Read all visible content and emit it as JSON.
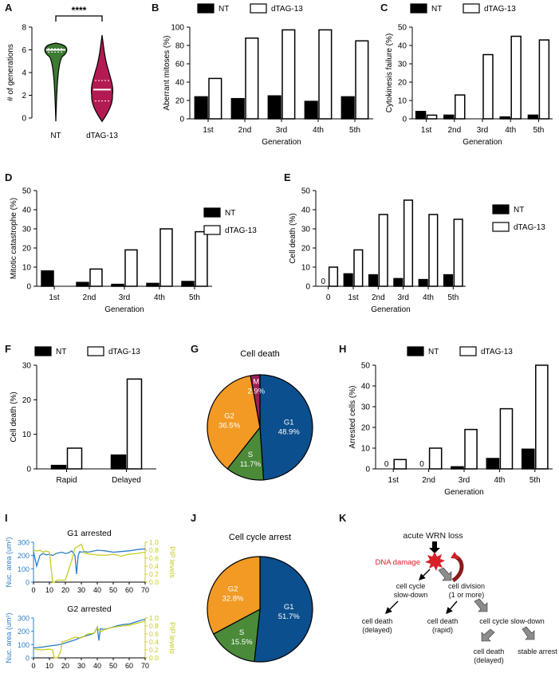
{
  "panel_labels": [
    "A",
    "B",
    "C",
    "D",
    "E",
    "F",
    "G",
    "H",
    "I",
    "J",
    "K"
  ],
  "colors": {
    "nt": "#000000",
    "dtag": "#ffffff",
    "violin_nt": "#3d7a33",
    "violin_dtag": "#b31a53",
    "g1": "#0b4f8e",
    "s": "#4a8a39",
    "g2": "#f29a24",
    "m": "#9c1f55",
    "trace_area": "#2c7dc4",
    "trace_pip": "#c6cc21",
    "damage": "#d8202a",
    "arrow_gray": "#8c8c8c"
  },
  "chart_data": [
    {
      "id": "A",
      "type": "violin",
      "ylabel": "# of generations",
      "ylim": [
        0,
        8
      ],
      "yticks": [
        0,
        2,
        4,
        6,
        8
      ],
      "categories": [
        "NT",
        "dTAG-13"
      ],
      "medians": [
        6,
        2.5
      ],
      "quartiles": [
        [
          5.8,
          6.1
        ],
        [
          1.5,
          3.3
        ]
      ],
      "ranges": [
        [
          -0.3,
          6.6
        ],
        [
          -0.3,
          7.3
        ]
      ],
      "significance": "****"
    },
    {
      "id": "B",
      "type": "bar",
      "ylabel": "Aberrant mitoses (%)",
      "xlabel": "Generation",
      "ylim": [
        0,
        100
      ],
      "yticks": [
        0,
        20,
        40,
        60,
        80,
        100
      ],
      "categories": [
        "1st",
        "2nd",
        "3rd",
        "4th",
        "5th"
      ],
      "series": [
        {
          "name": "NT",
          "values": [
            24,
            22,
            25,
            19,
            24
          ]
        },
        {
          "name": "dTAG-13",
          "values": [
            44,
            88,
            97,
            97,
            85
          ]
        }
      ]
    },
    {
      "id": "C",
      "type": "bar",
      "ylabel": "Cytokinesis failure (%)",
      "xlabel": "Generation",
      "ylim": [
        0,
        50
      ],
      "yticks": [
        0,
        10,
        20,
        30,
        40,
        50
      ],
      "categories": [
        "1st",
        "2nd",
        "3rd",
        "4th",
        "5th"
      ],
      "series": [
        {
          "name": "NT",
          "values": [
            4,
            2,
            0,
            1,
            2
          ]
        },
        {
          "name": "dTAG-13",
          "values": [
            2,
            13,
            35,
            45,
            43
          ]
        }
      ]
    },
    {
      "id": "D",
      "type": "bar",
      "ylabel": "Mitotic catastrophe (%)",
      "xlabel": "Generation",
      "ylim": [
        0,
        50
      ],
      "yticks": [
        0,
        10,
        20,
        30,
        40,
        50
      ],
      "categories": [
        "1st",
        "2nd",
        "3rd",
        "4th",
        "5th"
      ],
      "series": [
        {
          "name": "NT",
          "values": [
            8,
            2,
            1,
            1.5,
            2.5
          ]
        },
        {
          "name": "dTAG-13",
          "values": [
            0,
            9,
            19,
            30,
            28.5
          ]
        }
      ]
    },
    {
      "id": "E",
      "type": "bar",
      "ylabel": "Cell death (%)",
      "xlabel": "Generation",
      "ylim": [
        0,
        50
      ],
      "yticks": [
        0,
        10,
        20,
        30,
        40,
        50
      ],
      "categories": [
        "0",
        "1st",
        "2nd",
        "3rd",
        "4th",
        "5th"
      ],
      "series": [
        {
          "name": "NT",
          "values": [
            0,
            6.5,
            6,
            4,
            3.5,
            6
          ]
        },
        {
          "name": "dTAG-13",
          "values": [
            10,
            19,
            37.5,
            45,
            37.5,
            35
          ]
        }
      ],
      "zero_labels": [
        {
          "category": "0",
          "series": "NT",
          "text": "0"
        }
      ]
    },
    {
      "id": "F",
      "type": "bar",
      "ylabel": "Cell death (%)",
      "xlabel": "",
      "ylim": [
        0,
        30
      ],
      "yticks": [
        0,
        10,
        20,
        30
      ],
      "categories": [
        "Rapid",
        "Delayed"
      ],
      "series": [
        {
          "name": "NT",
          "values": [
            1,
            4
          ]
        },
        {
          "name": "dTAG-13",
          "values": [
            6,
            26
          ]
        }
      ]
    },
    {
      "id": "G",
      "type": "pie",
      "title": "Cell death",
      "slices": [
        {
          "label": "G1",
          "value": 48.9,
          "pct": "48.9%"
        },
        {
          "label": "S",
          "value": 11.7,
          "pct": "11.7%"
        },
        {
          "label": "G2",
          "value": 36.5,
          "pct": "36.5%"
        },
        {
          "label": "M",
          "value": 2.9,
          "pct": "2.9%"
        }
      ]
    },
    {
      "id": "H",
      "type": "bar",
      "ylabel": "Arrested cells (%)",
      "xlabel": "Generation",
      "ylim": [
        0,
        50
      ],
      "yticks": [
        0,
        10,
        20,
        30,
        40,
        50
      ],
      "categories": [
        "1st",
        "2nd",
        "3rd",
        "4th",
        "5th"
      ],
      "series": [
        {
          "name": "NT",
          "values": [
            0,
            0,
            1,
            5,
            9.5
          ]
        },
        {
          "name": "dTAG-13",
          "values": [
            4.5,
            10,
            19,
            29,
            50
          ]
        }
      ],
      "zero_labels": [
        {
          "category": "1st",
          "series": "NT",
          "text": "0"
        },
        {
          "category": "2nd",
          "series": "NT",
          "text": "0"
        }
      ]
    },
    {
      "id": "I1",
      "type": "line",
      "title": "G1 arrested",
      "ylabel": "Nuc. area (um²)",
      "y2label": "PIP levels",
      "xlim": [
        0,
        70
      ],
      "xticks": [
        0,
        10,
        20,
        30,
        40,
        50,
        60,
        70
      ],
      "ylim": [
        0,
        300
      ],
      "yticks": [
        0,
        100,
        200,
        300
      ],
      "y2lim": [
        0,
        1.0
      ],
      "y2ticks": [
        "0.0",
        "0.2",
        "0.4",
        "0.6",
        "0.8",
        "1.0"
      ],
      "series": [
        {
          "name": "Nuc. area",
          "axis": "left",
          "x": [
            0,
            2,
            4,
            6,
            8,
            10,
            12,
            14,
            16,
            18,
            20,
            22,
            24,
            26,
            27,
            28,
            29,
            30,
            32,
            34,
            36,
            40,
            45,
            50,
            55,
            60,
            65,
            70
          ],
          "y": [
            230,
            120,
            200,
            215,
            205,
            210,
            200,
            215,
            220,
            225,
            215,
            220,
            235,
            200,
            60,
            200,
            230,
            225,
            230,
            225,
            230,
            240,
            235,
            225,
            230,
            235,
            245,
            250
          ]
        },
        {
          "name": "PIP levels",
          "axis": "right",
          "x": [
            0,
            2,
            4,
            6,
            8,
            10,
            12,
            13,
            15,
            20,
            24,
            26,
            28,
            30,
            32,
            36,
            40,
            45,
            50,
            55,
            60,
            65,
            70
          ],
          "y": [
            0.8,
            0.78,
            0.8,
            0.75,
            0.78,
            0.75,
            0.0,
            0.0,
            0.05,
            0.05,
            0.55,
            0.85,
            0.9,
            0.95,
            0.72,
            0.7,
            0.68,
            0.67,
            0.7,
            0.65,
            0.7,
            0.72,
            0.75
          ]
        }
      ]
    },
    {
      "id": "I2",
      "type": "line",
      "title": "G2 arrested",
      "ylabel": "Nuc. area (um²)",
      "y2label": "PIP levels",
      "xlim": [
        0,
        70
      ],
      "xticks": [
        0,
        10,
        20,
        30,
        40,
        50,
        60,
        70
      ],
      "ylim": [
        0,
        300
      ],
      "yticks": [
        0,
        100,
        200,
        300
      ],
      "y2lim": [
        0,
        1.0
      ],
      "y2ticks": [
        "0.0",
        "0.2",
        "0.4",
        "0.6",
        "0.8",
        "1.0"
      ],
      "series": [
        {
          "name": "Nuc. area",
          "axis": "left",
          "x": [
            0,
            5,
            10,
            14,
            18,
            22,
            26,
            30,
            34,
            38,
            40,
            41,
            42,
            44,
            48,
            52,
            56,
            60,
            64,
            68,
            70
          ],
          "y": [
            75,
            80,
            90,
            95,
            105,
            120,
            135,
            155,
            170,
            185,
            230,
            130,
            220,
            215,
            225,
            240,
            250,
            255,
            270,
            285,
            290
          ]
        },
        {
          "name": "PIP levels",
          "axis": "right",
          "x": [
            0,
            5,
            10,
            12,
            13,
            15,
            17,
            18,
            22,
            26,
            30,
            34,
            38,
            40,
            42,
            44,
            48,
            52,
            56,
            60,
            64,
            68,
            70
          ],
          "y": [
            0.22,
            0.2,
            0.22,
            0.2,
            0.0,
            0.0,
            0.15,
            0.4,
            0.45,
            0.52,
            0.5,
            0.6,
            0.62,
            0.75,
            0.65,
            0.7,
            0.75,
            0.78,
            0.8,
            0.82,
            0.86,
            0.9,
            0.92
          ]
        }
      ]
    },
    {
      "id": "J",
      "type": "pie",
      "title": "Cell cycle arrest",
      "slices": [
        {
          "label": "G1",
          "value": 51.7,
          "pct": "51.7%"
        },
        {
          "label": "S",
          "value": 15.5,
          "pct": "15.5%"
        },
        {
          "label": "G2",
          "value": 32.8,
          "pct": "32.8%"
        }
      ]
    }
  ],
  "legend": {
    "nt": "NT",
    "dtag": "dTAG-13"
  },
  "flow": {
    "acute_loss": "acute WRN loss",
    "dna_damage": "DNA damage",
    "slow_down_1": "cell cycle",
    "slow_down_2": "slow-down",
    "division_1": "cell division",
    "division_2": "(1 or more)",
    "death_delayed_1": "cell death",
    "death_delayed_2": "(delayed)",
    "death_rapid_1": "cell death",
    "death_rapid_2": "(rapid)",
    "slow_down_after": "cell cycle slow-down",
    "death_delayed_b1": "cell death",
    "death_delayed_b2": "(delayed)",
    "stable_arrest": "stable arrest"
  }
}
